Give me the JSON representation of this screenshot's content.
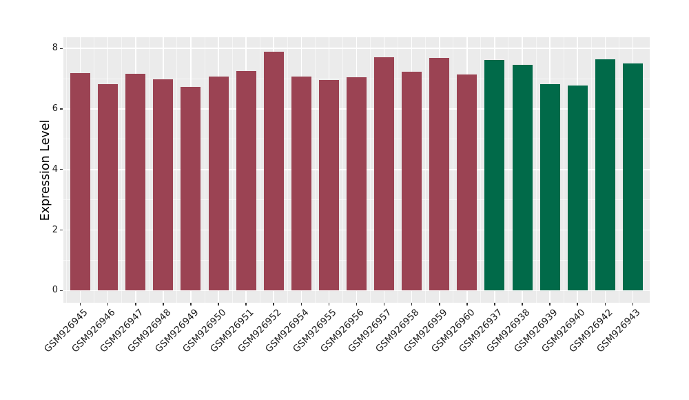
{
  "chart_data": {
    "type": "bar",
    "title": "",
    "xlabel": "",
    "ylabel": "Expression Level",
    "legend": "none",
    "grid": "on",
    "panel_bg": "#EBEBEB",
    "grid_color": "#FFFFFF",
    "tick_color": "#333333",
    "ylim": [
      0,
      8
    ],
    "ylim_expanded": [
      -0.4,
      8.37
    ],
    "yticks": [
      0,
      2,
      4,
      6,
      8
    ],
    "yticks_minor": [
      1,
      3,
      5,
      7
    ],
    "categories": [
      "GSM926945",
      "GSM926946",
      "GSM926947",
      "GSM926948",
      "GSM926949",
      "GSM926950",
      "GSM926951",
      "GSM926952",
      "GSM926954",
      "GSM926955",
      "GSM926956",
      "GSM926957",
      "GSM926958",
      "GSM926959",
      "GSM926960",
      "GSM926937",
      "GSM926938",
      "GSM926939",
      "GSM926940",
      "GSM926942",
      "GSM926943"
    ],
    "values": [
      7.18,
      6.82,
      7.16,
      6.97,
      6.72,
      7.08,
      7.25,
      7.9,
      7.07,
      6.96,
      7.06,
      7.72,
      7.24,
      7.69,
      7.13,
      7.61,
      7.47,
      6.82,
      6.77,
      7.65,
      7.51
    ],
    "bar_groups": [
      "group_a",
      "group_a",
      "group_a",
      "group_a",
      "group_a",
      "group_a",
      "group_a",
      "group_a",
      "group_a",
      "group_a",
      "group_a",
      "group_a",
      "group_a",
      "group_a",
      "group_a",
      "group_b",
      "group_b",
      "group_b",
      "group_b",
      "group_b",
      "group_b"
    ],
    "group_colors": {
      "group_a": "#9B4353",
      "group_b": "#016A49"
    }
  }
}
